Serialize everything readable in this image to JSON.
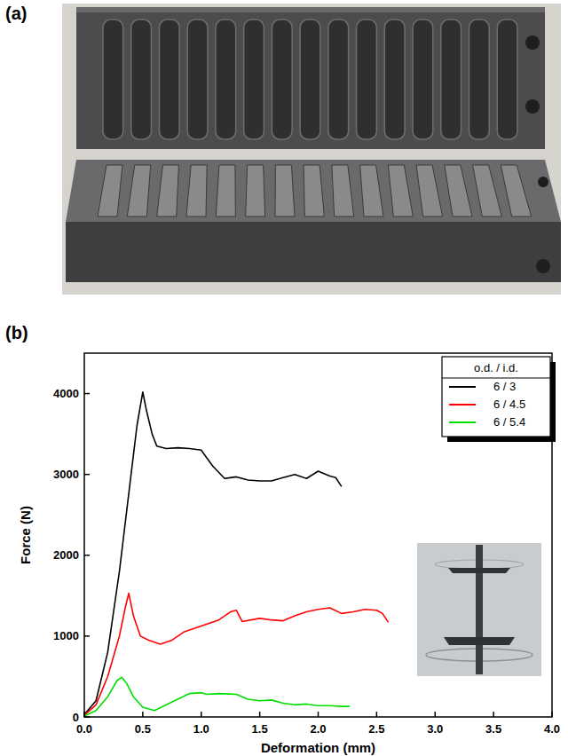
{
  "panel_labels": [
    "(a)",
    "(b)"
  ],
  "chart_data": {
    "type": "line",
    "x_label": "Deformation (mm)",
    "y_label": "Force (N)",
    "legend_title": "o.d. / i.d.",
    "legend": "top-right",
    "grid": false,
    "xlim": [
      0,
      4
    ],
    "xticks": [
      {
        "value": 0,
        "label": "0.0"
      },
      {
        "value": 0.5,
        "label": "0.5"
      },
      {
        "value": 1,
        "label": "1.0"
      },
      {
        "value": 1.5,
        "label": "1.5"
      },
      {
        "value": 2,
        "label": "2.0"
      },
      {
        "value": 2.5,
        "label": "2.5"
      },
      {
        "value": 3,
        "label": "3.0"
      },
      {
        "value": 3.5,
        "label": "3.5"
      },
      {
        "value": 4,
        "label": "4.0"
      }
    ],
    "ylim": [
      0,
      4500
    ],
    "yticks": [
      0,
      1000,
      2000,
      3000,
      4000
    ],
    "series": [
      {
        "name": "6 / 3",
        "color": "#000000",
        "x": [
          0,
          0.1,
          0.2,
          0.3,
          0.4,
          0.45,
          0.5,
          0.53,
          0.58,
          0.62,
          0.7,
          0.8,
          0.9,
          1.0,
          1.05,
          1.1,
          1.2,
          1.3,
          1.4,
          1.5,
          1.6,
          1.7,
          1.8,
          1.9,
          2.0,
          2.1,
          2.15,
          2.2
        ],
        "values": [
          30,
          200,
          800,
          1800,
          3000,
          3600,
          4020,
          3800,
          3500,
          3350,
          3320,
          3330,
          3320,
          3300,
          3200,
          3100,
          2950,
          2970,
          2930,
          2920,
          2920,
          2960,
          3000,
          2950,
          3040,
          2980,
          2960,
          2850
        ]
      },
      {
        "name": "6 / 4.5",
        "color": "#ff0000",
        "x": [
          0,
          0.1,
          0.2,
          0.3,
          0.35,
          0.38,
          0.42,
          0.48,
          0.55,
          0.65,
          0.75,
          0.85,
          0.95,
          1.05,
          1.15,
          1.25,
          1.3,
          1.35,
          1.5,
          1.6,
          1.7,
          1.8,
          1.9,
          2.0,
          2.1,
          2.2,
          2.3,
          2.4,
          2.5,
          2.55,
          2.6
        ],
        "values": [
          20,
          150,
          500,
          1000,
          1350,
          1530,
          1250,
          1000,
          950,
          900,
          950,
          1050,
          1100,
          1150,
          1200,
          1300,
          1320,
          1180,
          1220,
          1200,
          1190,
          1250,
          1300,
          1330,
          1350,
          1280,
          1300,
          1330,
          1320,
          1280,
          1170
        ]
      },
      {
        "name": "6 / 5.4",
        "color": "#00dd00",
        "x": [
          0,
          0.1,
          0.2,
          0.28,
          0.32,
          0.36,
          0.42,
          0.5,
          0.6,
          0.7,
          0.8,
          0.9,
          1.0,
          1.05,
          1.15,
          1.3,
          1.4,
          1.5,
          1.6,
          1.7,
          1.8,
          1.9,
          2.0,
          2.1,
          2.2,
          2.27
        ],
        "values": [
          10,
          80,
          250,
          450,
          490,
          420,
          250,
          120,
          80,
          150,
          220,
          290,
          300,
          280,
          290,
          280,
          220,
          200,
          210,
          170,
          150,
          160,
          140,
          140,
          130,
          130
        ]
      }
    ]
  }
}
